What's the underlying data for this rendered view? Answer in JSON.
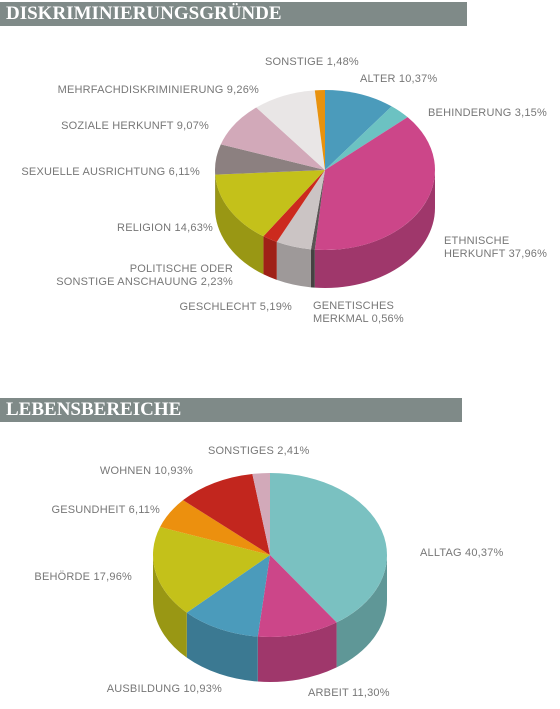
{
  "chart_data": [
    {
      "type": "pie",
      "title": "DISKRIMINIERUNGSGRÜNDE",
      "categories": [
        "ALTER",
        "BEHINDERUNG",
        "ETHNISCHE\nHERKUNFT",
        "GENETISCHES\nMERKMAL",
        "GESCHLECHT",
        "POLITISCHE ODER\nSONSTIGE ANSCHAUUNG",
        "RELIGION",
        "SEXUELLE AUSRICHTUNG",
        "SOZIALE HERKUNFT",
        "MEHRFACHDISKRIMINIERUNG",
        "SONSTIGE"
      ],
      "values": [
        10.37,
        3.15,
        37.96,
        0.56,
        5.19,
        2.23,
        14.63,
        6.11,
        9.07,
        9.26,
        1.48
      ],
      "value_labels": [
        "10,37%",
        "3,15%",
        "37,96%",
        "0,56%",
        "5,19%",
        "2,23%",
        "14,63%",
        "6,11%",
        "9,07%",
        "9,26%",
        "1,48%"
      ],
      "colors": [
        "#4b9bbb",
        "#6cc2c2",
        "#cc4689",
        "#5a5454",
        "#cbc4c4",
        "#cc2a1e",
        "#c4c11a",
        "#8c8080",
        "#d2a9b9",
        "#e9e6e6",
        "#e8920e"
      ]
    },
    {
      "type": "pie",
      "title": "LEBENSBEREICHE",
      "categories": [
        "ALLTAG",
        "ARBEIT",
        "AUSBILDUNG",
        "BEHÖRDE",
        "GESUNDHEIT",
        "WOHNEN",
        "SONSTIGES"
      ],
      "values": [
        40.37,
        11.3,
        10.93,
        17.96,
        6.11,
        10.93,
        2.41
      ],
      "value_labels": [
        "40,37%",
        "11,30%",
        "10,93%",
        "17,96%",
        "6,11%",
        "10,93%",
        "2,41%"
      ],
      "colors": [
        "#7ac1c1",
        "#cc4689",
        "#4b9bbb",
        "#c4c11a",
        "#ec900e",
        "#c2261e",
        "#d2a9b9"
      ]
    }
  ]
}
